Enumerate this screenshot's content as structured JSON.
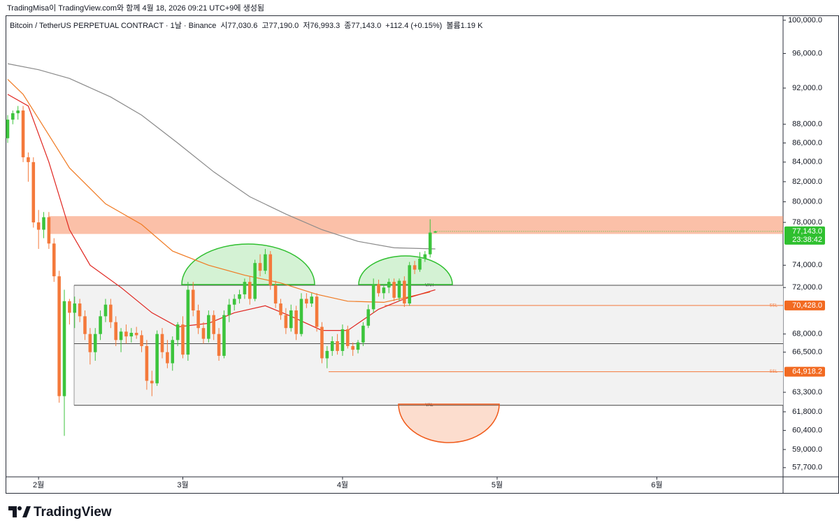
{
  "header": {
    "caption": "TradingMisa이 TradingView.com와 함께 4월 18, 2026 09:21 UTC+9에 생성됨"
  },
  "chart_data": {
    "type": "candlestick",
    "legend": [
      "Bitcoin / TetherUS PERPETUAL CONTRACT · 1날 · Binance",
      "시77,030.6",
      "고77,190.0",
      "저76,993.3",
      "종77,143.0",
      "+112.4 (+0.15%)",
      "볼륨1.19 K"
    ],
    "up_color": "#3cc43c",
    "down_color": "#f4793b",
    "log_scale": true,
    "grid": false,
    "xlim": [
      -0.4,
      150.5
    ],
    "xticks": [
      {
        "value": 6,
        "label": "2월"
      },
      {
        "value": 34,
        "label": "3월"
      },
      {
        "value": 65,
        "label": "4월"
      },
      {
        "value": 95,
        "label": "5월"
      },
      {
        "value": 126,
        "label": "6월"
      }
    ],
    "ylim": [
      57050,
      100600
    ],
    "yticks": [
      {
        "value": 100000,
        "label": "100,000.0"
      },
      {
        "value": 96000,
        "label": "96,000.0"
      },
      {
        "value": 92000,
        "label": "92,000.0"
      },
      {
        "value": 88000,
        "label": "88,000.0"
      },
      {
        "value": 86000,
        "label": "86,000.0"
      },
      {
        "value": 84000,
        "label": "84,000.0"
      },
      {
        "value": 82000,
        "label": "82,000.0"
      },
      {
        "value": 80000,
        "label": "80,000.0"
      },
      {
        "value": 78000,
        "label": "78,000.0"
      },
      {
        "value": 74000,
        "label": "74,000.0"
      },
      {
        "value": 72000,
        "label": "72,000.0"
      },
      {
        "value": 68000,
        "label": "68,000.0"
      },
      {
        "value": 66500,
        "label": "66,500.0"
      },
      {
        "value": 63300,
        "label": "63,300.0"
      },
      {
        "value": 61800,
        "label": "61,800.0"
      },
      {
        "value": 60400,
        "label": "60,400.0"
      },
      {
        "value": 59000,
        "label": "59,000.0"
      },
      {
        "value": 57700,
        "label": "57,700.0"
      }
    ],
    "open": [
      86500,
      88500,
      89200,
      89500,
      84500,
      84000,
      78000,
      77300,
      78500,
      76000,
      73000,
      63000,
      70800,
      69800,
      70600,
      69500,
      68000,
      66500,
      68000,
      69500,
      70500,
      69000,
      67500,
      68200,
      67800,
      68100,
      67900,
      67000,
      64200,
      64000,
      68000,
      66500,
      65600,
      67500,
      68800,
      66300,
      71800,
      70000,
      68500,
      67600,
      69600,
      68000,
      66200,
      69600,
      70500,
      71000,
      71400,
      72500,
      71000,
      74200,
      73500,
      75000,
      72200,
      70600,
      69600,
      68500,
      70000,
      68000,
      71000,
      70600,
      71200,
      68600,
      66000,
      66600,
      67400,
      66600,
      68400,
      67000,
      66700,
      67300,
      68700,
      70100,
      72300,
      71500,
      72000,
      72500,
      71100,
      72600,
      70600,
      74000,
      73600,
      74600,
      75000,
      77030.6
    ],
    "high": [
      89000,
      89500,
      90000,
      90000,
      85000,
      84500,
      79200,
      79000,
      79000,
      76500,
      73500,
      71800,
      71000,
      71200,
      71000,
      70000,
      68500,
      68500,
      70000,
      71000,
      71000,
      69500,
      68500,
      68800,
      68500,
      68600,
      68300,
      67500,
      65000,
      68300,
      68500,
      67500,
      67800,
      69000,
      69500,
      72500,
      72500,
      70500,
      69000,
      70000,
      70000,
      68500,
      70000,
      71000,
      71400,
      71800,
      72800,
      73000,
      74500,
      75000,
      75500,
      75300,
      72600,
      71000,
      70200,
      70500,
      70400,
      71500,
      71500,
      71500,
      71500,
      69000,
      67000,
      67800,
      68000,
      68800,
      68700,
      67300,
      67500,
      69000,
      70500,
      72800,
      72700,
      72300,
      72800,
      72800,
      72800,
      73000,
      74300,
      74400,
      75200,
      75300,
      78300,
      77190
    ],
    "low": [
      86000,
      88000,
      88500,
      84000,
      82000,
      77500,
      75500,
      76500,
      75500,
      72500,
      62500,
      60000,
      68800,
      68500,
      69000,
      67500,
      65500,
      65800,
      67500,
      69000,
      68500,
      67000,
      66500,
      67200,
      67300,
      67600,
      66500,
      63500,
      63000,
      63800,
      66000,
      65200,
      65000,
      67000,
      66000,
      65800,
      69500,
      68000,
      67200,
      67300,
      67500,
      65800,
      66000,
      69000,
      70000,
      70600,
      71000,
      70500,
      70800,
      73000,
      73200,
      71800,
      70200,
      69200,
      68000,
      68200,
      67500,
      67800,
      70200,
      70300,
      68200,
      65600,
      65200,
      66200,
      66300,
      66200,
      66800,
      66200,
      66400,
      67000,
      68500,
      69800,
      71200,
      71000,
      71500,
      70800,
      70800,
      70300,
      70400,
      73200,
      73400,
      74300,
      74700,
      76993.3
    ],
    "close": [
      88500,
      89200,
      89500,
      84500,
      84000,
      78000,
      77300,
      78500,
      76000,
      73000,
      63000,
      70800,
      69800,
      70600,
      69500,
      68000,
      66500,
      68000,
      69500,
      70500,
      69000,
      67500,
      68200,
      67800,
      68100,
      67900,
      67000,
      64200,
      64000,
      68000,
      66500,
      65600,
      67500,
      68800,
      66300,
      71800,
      70000,
      68500,
      67600,
      69600,
      68000,
      66200,
      69600,
      70500,
      71000,
      71400,
      72500,
      71000,
      74200,
      73500,
      75000,
      72200,
      70600,
      69600,
      68500,
      70000,
      68000,
      71000,
      70600,
      71200,
      68600,
      66000,
      66600,
      67400,
      66600,
      68400,
      67000,
      66700,
      67300,
      68700,
      70100,
      72300,
      71500,
      72000,
      72500,
      71100,
      72600,
      70600,
      74000,
      73600,
      74600,
      75000,
      77030.6,
      77143
    ],
    "series": [
      {
        "color": "#8a8a8a",
        "x": [
          0,
          6,
          12,
          20,
          26,
          33,
          40,
          47,
          54,
          61,
          68,
          75,
          83
        ],
        "values": [
          94800,
          94100,
          93100,
          91000,
          89000,
          86000,
          83000,
          80500,
          78800,
          77300,
          76200,
          75600,
          75500
        ]
      },
      {
        "color": "#f07a22",
        "x": [
          0,
          3,
          6,
          12,
          19,
          26,
          32,
          39,
          46,
          53,
          60,
          66,
          73,
          82
        ],
        "values": [
          93000,
          91300,
          88600,
          83400,
          79800,
          77800,
          75300,
          74000,
          73100,
          72400,
          71400,
          70800,
          70700,
          71600
        ]
      },
      {
        "color": "#e0251f",
        "x": [
          0,
          4,
          8,
          12,
          16,
          22,
          28,
          33,
          39,
          44,
          50,
          55,
          61,
          66,
          72,
          77,
          83
        ],
        "values": [
          91300,
          90000,
          84000,
          77300,
          74000,
          72000,
          69800,
          68600,
          68900,
          69800,
          70400,
          69500,
          68300,
          68300,
          70100,
          71000,
          71800
        ]
      }
    ],
    "resistance_zone": [
      76900,
      78600
    ],
    "levels": [
      {
        "name": "VAH",
        "value": 72200
      },
      {
        "name": "VAL",
        "value": 62300
      },
      {
        "value": 67200
      },
      {
        "name": "SSL",
        "value": 70428,
        "label": "70,428.0"
      },
      {
        "name": "SSL",
        "value": 64918.2,
        "label": "64,918.2"
      }
    ],
    "last_price": {
      "value": 77143,
      "label": "77,143.0",
      "countdown": "23:38:42"
    }
  },
  "footer": {
    "brand": "TradingView"
  }
}
